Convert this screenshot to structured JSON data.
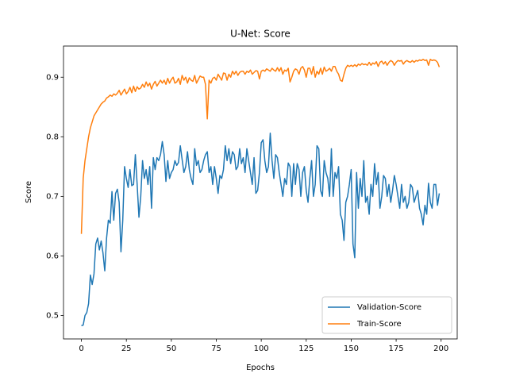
{
  "chart_data": {
    "type": "line",
    "title": "U-Net: Score",
    "xlabel": "Epochs",
    "ylabel": "Score",
    "xlim": [
      -9.95,
      208.95
    ],
    "ylim": [
      0.4607,
      0.9523
    ],
    "xticks": [
      0,
      25,
      50,
      75,
      100,
      125,
      150,
      175,
      200
    ],
    "yticks": [
      0.5,
      0.6,
      0.7,
      0.8,
      0.9
    ],
    "grid": false,
    "legend": "lower right",
    "x": [
      0,
      1,
      2,
      3,
      4,
      5,
      6,
      7,
      8,
      9,
      10,
      11,
      12,
      13,
      14,
      15,
      16,
      17,
      18,
      19,
      20,
      21,
      22,
      23,
      24,
      25,
      26,
      27,
      28,
      29,
      30,
      31,
      32,
      33,
      34,
      35,
      36,
      37,
      38,
      39,
      40,
      41,
      42,
      43,
      44,
      45,
      46,
      47,
      48,
      49,
      50,
      51,
      52,
      53,
      54,
      55,
      56,
      57,
      58,
      59,
      60,
      61,
      62,
      63,
      64,
      65,
      66,
      67,
      68,
      69,
      70,
      71,
      72,
      73,
      74,
      75,
      76,
      77,
      78,
      79,
      80,
      81,
      82,
      83,
      84,
      85,
      86,
      87,
      88,
      89,
      90,
      91,
      92,
      93,
      94,
      95,
      96,
      97,
      98,
      99,
      100,
      101,
      102,
      103,
      104,
      105,
      106,
      107,
      108,
      109,
      110,
      111,
      112,
      113,
      114,
      115,
      116,
      117,
      118,
      119,
      120,
      121,
      122,
      123,
      124,
      125,
      126,
      127,
      128,
      129,
      130,
      131,
      132,
      133,
      134,
      135,
      136,
      137,
      138,
      139,
      140,
      141,
      142,
      143,
      144,
      145,
      146,
      147,
      148,
      149,
      150,
      151,
      152,
      153,
      154,
      155,
      156,
      157,
      158,
      159,
      160,
      161,
      162,
      163,
      164,
      165,
      166,
      167,
      168,
      169,
      170,
      171,
      172,
      173,
      174,
      175,
      176,
      177,
      178,
      179,
      180,
      181,
      182,
      183,
      184,
      185,
      186,
      187,
      188,
      189,
      190,
      191,
      192,
      193,
      194,
      195,
      196,
      197,
      198,
      199
    ],
    "series": [
      {
        "name": "Validation-Score",
        "color": "#1f77b4",
        "values": [
          0.483,
          0.484,
          0.5,
          0.505,
          0.52,
          0.568,
          0.552,
          0.57,
          0.62,
          0.63,
          0.61,
          0.625,
          0.605,
          0.575,
          0.63,
          0.66,
          0.655,
          0.708,
          0.66,
          0.705,
          0.712,
          0.69,
          0.607,
          0.66,
          0.75,
          0.73,
          0.715,
          0.745,
          0.718,
          0.72,
          0.77,
          0.72,
          0.665,
          0.7,
          0.76,
          0.73,
          0.745,
          0.72,
          0.75,
          0.68,
          0.765,
          0.745,
          0.765,
          0.76,
          0.77,
          0.792,
          0.77,
          0.725,
          0.76,
          0.73,
          0.74,
          0.745,
          0.76,
          0.752,
          0.757,
          0.785,
          0.762,
          0.74,
          0.75,
          0.775,
          0.745,
          0.73,
          0.72,
          0.78,
          0.752,
          0.76,
          0.74,
          0.745,
          0.76,
          0.77,
          0.775,
          0.74,
          0.75,
          0.72,
          0.75,
          0.73,
          0.705,
          0.735,
          0.73,
          0.745,
          0.785,
          0.76,
          0.78,
          0.755,
          0.775,
          0.77,
          0.745,
          0.75,
          0.78,
          0.755,
          0.765,
          0.74,
          0.78,
          0.76,
          0.74,
          0.72,
          0.765,
          0.705,
          0.71,
          0.74,
          0.79,
          0.795,
          0.76,
          0.74,
          0.75,
          0.806,
          0.76,
          0.73,
          0.77,
          0.765,
          0.74,
          0.72,
          0.7,
          0.73,
          0.72,
          0.756,
          0.75,
          0.7,
          0.755,
          0.72,
          0.755,
          0.745,
          0.7,
          0.74,
          0.75,
          0.71,
          0.69,
          0.73,
          0.76,
          0.7,
          0.72,
          0.785,
          0.78,
          0.71,
          0.7,
          0.76,
          0.74,
          0.73,
          0.7,
          0.78,
          0.7,
          0.74,
          0.73,
          0.75,
          0.67,
          0.66,
          0.626,
          0.69,
          0.7,
          0.72,
          0.745,
          0.62,
          0.597,
          0.74,
          0.68,
          0.73,
          0.7,
          0.76,
          0.69,
          0.7,
          0.67,
          0.72,
          0.7,
          0.755,
          0.72,
          0.74,
          0.68,
          0.7,
          0.735,
          0.73,
          0.7,
          0.72,
          0.69,
          0.71,
          0.735,
          0.72,
          0.7,
          0.68,
          0.72,
          0.69,
          0.7,
          0.68,
          0.69,
          0.72,
          0.715,
          0.69,
          0.7,
          0.71,
          0.68,
          0.67,
          0.652,
          0.685,
          0.67,
          0.722,
          0.69,
          0.68,
          0.72,
          0.72,
          0.685,
          0.705
        ]
      },
      {
        "name": "Train-Score",
        "color": "#ff7f0e",
        "values": [
          0.637,
          0.73,
          0.76,
          0.78,
          0.8,
          0.815,
          0.825,
          0.835,
          0.84,
          0.845,
          0.85,
          0.855,
          0.858,
          0.86,
          0.865,
          0.867,
          0.87,
          0.868,
          0.872,
          0.87,
          0.873,
          0.878,
          0.87,
          0.875,
          0.88,
          0.872,
          0.876,
          0.883,
          0.874,
          0.885,
          0.876,
          0.884,
          0.88,
          0.882,
          0.888,
          0.883,
          0.892,
          0.885,
          0.89,
          0.88,
          0.888,
          0.893,
          0.885,
          0.89,
          0.895,
          0.89,
          0.895,
          0.888,
          0.898,
          0.89,
          0.896,
          0.9,
          0.89,
          0.892,
          0.898,
          0.888,
          0.903,
          0.895,
          0.9,
          0.89,
          0.899,
          0.895,
          0.893,
          0.903,
          0.89,
          0.896,
          0.902,
          0.9,
          0.9,
          0.888,
          0.83,
          0.895,
          0.89,
          0.898,
          0.9,
          0.895,
          0.905,
          0.9,
          0.895,
          0.907,
          0.906,
          0.895,
          0.905,
          0.9,
          0.91,
          0.905,
          0.91,
          0.903,
          0.908,
          0.91,
          0.91,
          0.905,
          0.91,
          0.908,
          0.912,
          0.905,
          0.908,
          0.911,
          0.91,
          0.897,
          0.91,
          0.912,
          0.91,
          0.914,
          0.912,
          0.91,
          0.915,
          0.912,
          0.91,
          0.916,
          0.91,
          0.916,
          0.905,
          0.912,
          0.91,
          0.915,
          0.892,
          0.9,
          0.91,
          0.914,
          0.912,
          0.905,
          0.915,
          0.918,
          0.912,
          0.9,
          0.915,
          0.915,
          0.905,
          0.918,
          0.9,
          0.91,
          0.905,
          0.915,
          0.905,
          0.917,
          0.91,
          0.912,
          0.915,
          0.91,
          0.918,
          0.918,
          0.91,
          0.905,
          0.895,
          0.893,
          0.905,
          0.915,
          0.92,
          0.918,
          0.92,
          0.918,
          0.921,
          0.918,
          0.922,
          0.92,
          0.923,
          0.921,
          0.922,
          0.92,
          0.925,
          0.92,
          0.924,
          0.922,
          0.926,
          0.918,
          0.925,
          0.927,
          0.922,
          0.926,
          0.92,
          0.925,
          0.928,
          0.926,
          0.92,
          0.925,
          0.928,
          0.927,
          0.928,
          0.922,
          0.926,
          0.928,
          0.926,
          0.925,
          0.928,
          0.925,
          0.928,
          0.927,
          0.929,
          0.928,
          0.93,
          0.928,
          0.929,
          0.92,
          0.93,
          0.928,
          0.929,
          0.928,
          0.925,
          0.917
        ]
      }
    ]
  }
}
